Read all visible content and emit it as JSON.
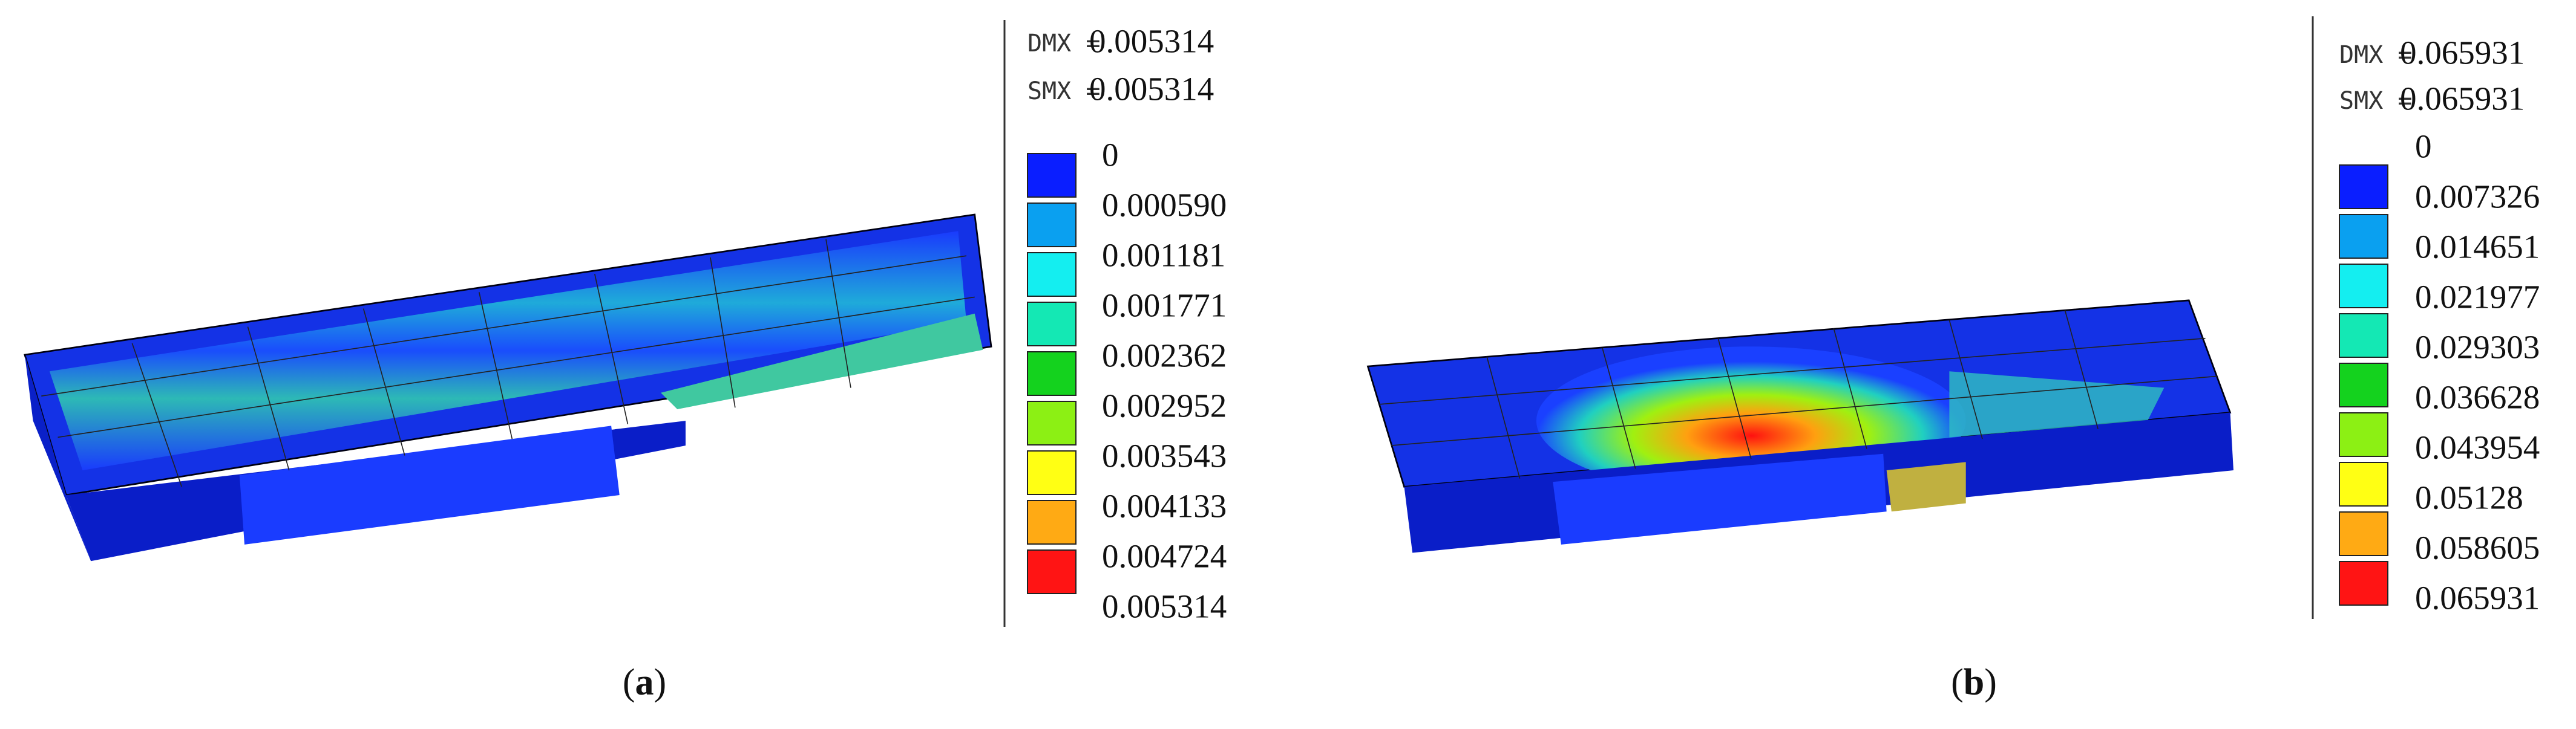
{
  "panels": [
    {
      "dmx": {
        "label": "DMX =",
        "value": "0.005314"
      },
      "smx": {
        "label": "SMX =",
        "value": "0.005314"
      },
      "legend": {
        "labels": [
          "0",
          "0.000590",
          "0.001181",
          "0.001771",
          "0.002362",
          "0.002952",
          "0.003543",
          "0.004133",
          "0.004724",
          "0.005314"
        ],
        "colors": [
          "#0a1eff",
          "#0aa0f0",
          "#14eef0",
          "#14e8b4",
          "#14d21e",
          "#8cf014",
          "#ffff14",
          "#ffaa14",
          "#ff1414"
        ]
      },
      "caption": {
        "open": "(",
        "letter": "a",
        "close": ")"
      }
    },
    {
      "dmx": {
        "label": "DMX =",
        "value": "0.065931"
      },
      "smx": {
        "label": "SMX =",
        "value": "0.065931"
      },
      "legend": {
        "labels": [
          "0",
          "0.007326",
          "0.014651",
          "0.021977",
          "0.029303",
          "0.036628",
          "0.043954",
          "0.05128",
          "0.058605",
          "0.065931"
        ],
        "colors": [
          "#0a1eff",
          "#0aa0f0",
          "#14eef0",
          "#14e8b4",
          "#14d21e",
          "#8cf014",
          "#ffff14",
          "#ffaa14",
          "#ff1414"
        ]
      },
      "caption": {
        "open": "(",
        "letter": "b",
        "close": ")"
      }
    }
  ]
}
